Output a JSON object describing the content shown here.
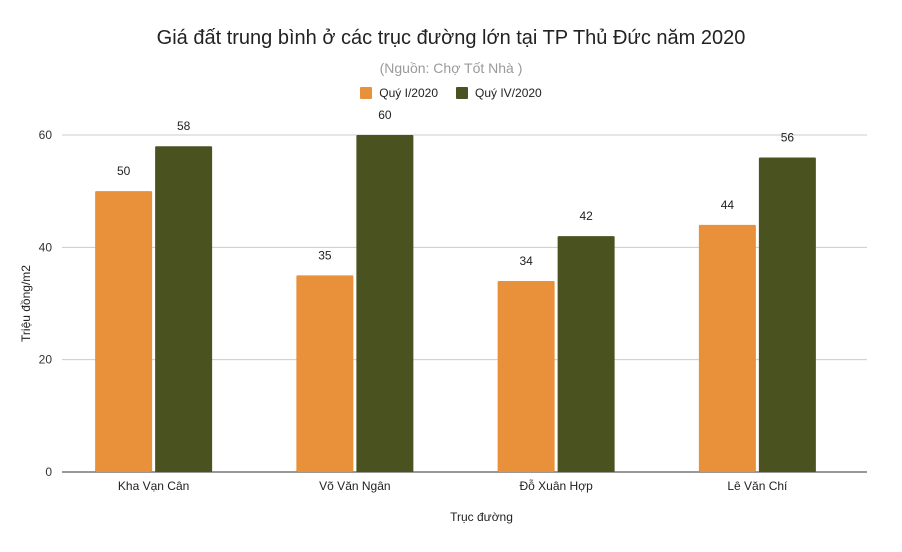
{
  "chart_data": {
    "type": "bar",
    "title": "Giá đất trung bình ở các trục đường lớn tại TP Thủ Đức năm 2020",
    "subtitle": "(Nguồn: Chợ Tốt Nhà )",
    "xlabel": "Trục đường",
    "ylabel": "Triệu đồng/m2",
    "categories": [
      "Kha Vạn Cân",
      "Võ Văn Ngân",
      "Đỗ Xuân Hợp",
      "Lê Văn Chí"
    ],
    "series": [
      {
        "name": "Quý I/2020",
        "values": [
          50,
          35,
          34,
          44
        ],
        "color": "#e8913a"
      },
      {
        "name": "Quý IV/2020",
        "values": [
          58,
          60,
          42,
          56
        ],
        "color": "#4a5320"
      }
    ],
    "ylim": [
      0,
      60
    ],
    "yticks": [
      0,
      20,
      40,
      60
    ],
    "grid": true,
    "legend_position": "top"
  }
}
